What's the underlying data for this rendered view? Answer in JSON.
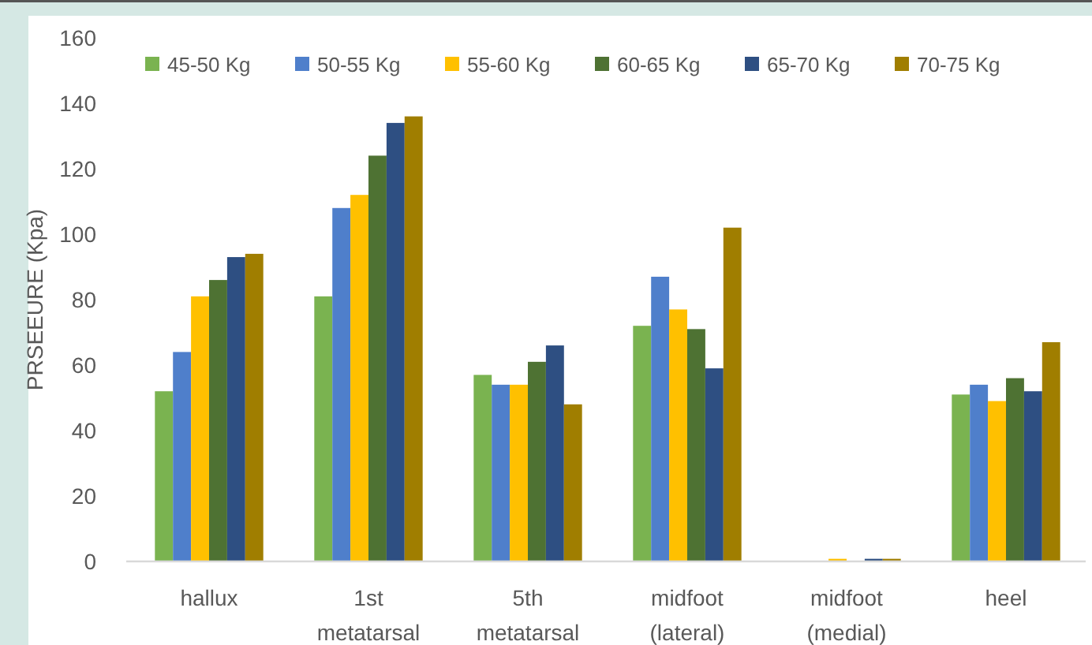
{
  "chart_data": {
    "type": "bar",
    "ylabel": "PRSEEURE (Kpa)",
    "categories": [
      "hallux",
      "1st metatarsal",
      "5th metatarsal",
      "midfoot (lateral)",
      "midfoot (medial)",
      "heel"
    ],
    "series": [
      {
        "name": "45-50 Kg",
        "color": "#7ab350",
        "values": [
          52,
          81,
          57,
          72,
          0,
          51
        ]
      },
      {
        "name": "50-55 Kg",
        "color": "#4f7fcb",
        "values": [
          64,
          108,
          54,
          87,
          0,
          54
        ]
      },
      {
        "name": "55-60 Kg",
        "color": "#ffc000",
        "values": [
          81,
          112,
          54,
          77,
          0.8,
          49
        ]
      },
      {
        "name": "60-65 Kg",
        "color": "#4e7233",
        "values": [
          86,
          124,
          61,
          71,
          0,
          56
        ]
      },
      {
        "name": "65-70 Kg",
        "color": "#2e4f82",
        "values": [
          93,
          134,
          66,
          59,
          0.8,
          52
        ]
      },
      {
        "name": "70-75 Kg",
        "color": "#a07e00",
        "values": [
          94,
          136,
          48,
          102,
          0.8,
          67
        ]
      }
    ],
    "ylim": [
      0,
      160
    ],
    "yticks": [
      0,
      20,
      40,
      60,
      80,
      100,
      120,
      140,
      160
    ],
    "grid": false,
    "legend": "top"
  }
}
